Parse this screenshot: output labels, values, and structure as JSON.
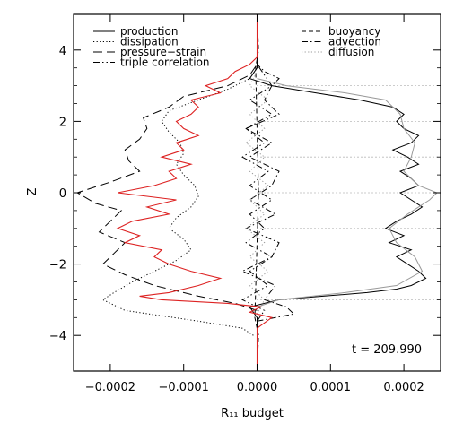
{
  "chart_data": {
    "type": "line",
    "xlabel": "R₁₁ budget",
    "ylabel": "Z",
    "xlim": [
      -0.00025,
      0.00025
    ],
    "ylim": [
      -5,
      5
    ],
    "x_ticks": [
      -0.0002,
      -0.0001,
      0.0,
      0.0001,
      0.0002
    ],
    "x_tick_labels": [
      "−0.0002",
      "−0.0001",
      "0.0000",
      "0.0001",
      "0.0002"
    ],
    "y_ticks": [
      -4,
      -2,
      0,
      2,
      4
    ],
    "y_tick_labels": [
      "−4",
      "−2",
      "0",
      "2",
      "4"
    ],
    "dotted_reference_z": [
      -3,
      -2,
      -1,
      0,
      1,
      2,
      3
    ],
    "grid": false,
    "legend_placement": "top",
    "annotation": "t = 209.990",
    "series": [
      {
        "name": "production",
        "color": "#000000",
        "dash": "solid",
        "z": [
          -5,
          -3.5,
          -3.2,
          -3.0,
          -2.9,
          -2.8,
          -2.7,
          -2.6,
          -2.4,
          -2.2,
          -2.0,
          -1.8,
          -1.6,
          -1.4,
          -1.2,
          -1.0,
          -0.8,
          -0.6,
          -0.4,
          -0.2,
          0.0,
          0.2,
          0.4,
          0.6,
          0.8,
          1.0,
          1.2,
          1.4,
          1.6,
          1.8,
          2.0,
          2.2,
          2.4,
          2.6,
          2.8,
          3.0,
          3.2,
          3.5,
          5
        ],
        "values": [
          0,
          0,
          -1e-05,
          3e-05,
          9e-05,
          0.00015,
          0.00019,
          0.00021,
          0.00023,
          0.00022,
          0.000205,
          0.00019,
          0.00021,
          0.00018,
          0.0002,
          0.000175,
          0.00019,
          0.00021,
          0.000225,
          0.00021,
          0.000195,
          0.00022,
          0.00021,
          0.000195,
          0.00022,
          0.000205,
          0.000185,
          0.00021,
          0.00022,
          0.0002,
          0.00019,
          0.0002,
          0.000185,
          0.00014,
          8e-05,
          2e-05,
          -1e-05,
          0,
          0
        ]
      },
      {
        "name": "dissipation",
        "color": "#000000",
        "dash": "dotted",
        "z": [
          -4.0,
          -3.8,
          -3.6,
          -3.3,
          -3.0,
          -2.8,
          -2.5,
          -2.2,
          -1.9,
          -1.6,
          -1.3,
          -1.0,
          -0.7,
          -0.4,
          -0.1,
          0.2,
          0.5,
          0.8,
          1.1,
          1.4,
          1.7,
          2.0,
          2.3,
          2.6,
          2.9,
          3.2,
          3.5
        ],
        "values": [
          -5e-06,
          -2e-05,
          -8e-05,
          -0.00018,
          -0.00021,
          -0.000195,
          -0.00017,
          -0.00014,
          -0.00011,
          -9e-05,
          -0.0001,
          -0.00012,
          -0.00011,
          -9e-05,
          -8e-05,
          -8.5e-05,
          -0.0001,
          -0.00011,
          -0.0001,
          -0.000105,
          -0.00012,
          -0.00013,
          -0.00012,
          -8e-05,
          -4e-05,
          -1e-05,
          0.0
        ]
      },
      {
        "name": "pressure−strain",
        "color": "#000000",
        "dash": "longdash",
        "z": [
          -3.3,
          -3.1,
          -2.9,
          -2.6,
          -2.3,
          -2.0,
          -1.7,
          -1.4,
          -1.1,
          -0.8,
          -0.5,
          -0.3,
          0.0,
          0.3,
          0.6,
          0.9,
          1.2,
          1.5,
          1.8,
          2.1,
          2.4,
          2.7,
          3.0,
          3.3,
          3.6
        ],
        "values": [
          0.0,
          -3e-05,
          -8e-05,
          -0.00014,
          -0.00018,
          -0.00021,
          -0.000195,
          -0.00018,
          -0.000215,
          -0.0002,
          -0.000185,
          -0.00022,
          -0.000245,
          -0.0002,
          -0.00016,
          -0.000175,
          -0.00018,
          -0.00016,
          -0.00015,
          -0.000155,
          -0.00012,
          -0.0001,
          -4e-05,
          -1e-05,
          0.0
        ]
      },
      {
        "name": "triple correlation",
        "color": "#000000",
        "dash": "dashdotdot",
        "z": [
          -3.6,
          -3.3,
          -3.0,
          -2.6,
          -2.2,
          -1.8,
          -1.4,
          -1.0,
          -0.6,
          -0.2,
          0.2,
          0.6,
          1.0,
          1.4,
          1.8,
          2.2,
          2.6,
          3.0,
          3.3,
          3.6
        ],
        "values": [
          0.0,
          1e-05,
          -2e-05,
          1.5e-05,
          -1e-05,
          2e-05,
          -1.5e-05,
          1e-05,
          -1e-05,
          2e-05,
          -1e-05,
          1.5e-05,
          -2e-05,
          1e-05,
          -1.5e-05,
          2e-05,
          -1e-05,
          2e-05,
          1e-05,
          0.0
        ]
      },
      {
        "name": "buoyancy",
        "color": "#000000",
        "dash": "shortdash",
        "z": [
          -5,
          -4.0,
          -3.5,
          0.0,
          3.5,
          4.0,
          5
        ],
        "values": [
          0.0,
          2e-06,
          -3e-06,
          2e-06,
          -2e-06,
          2e-06,
          0.0
        ]
      },
      {
        "name": "advection",
        "color": "#000000",
        "dash": "dashdot",
        "z": [
          -3.6,
          -3.4,
          -3.2,
          -3.0,
          -2.6,
          -2.2,
          -1.8,
          -1.4,
          -1.0,
          -0.6,
          -0.2,
          0.2,
          0.6,
          1.0,
          1.4,
          1.8,
          2.2,
          2.6,
          3.0,
          3.2,
          3.4,
          3.6
        ],
        "values": [
          0.0,
          5e-05,
          4e-05,
          1e-05,
          2.5e-05,
          -2e-05,
          2e-05,
          3e-05,
          -1.5e-05,
          2.5e-05,
          -1e-05,
          2e-05,
          3e-05,
          -1e-05,
          2e-05,
          -1.5e-05,
          3e-05,
          1e-05,
          2e-05,
          3e-05,
          1e-05,
          0.0
        ]
      },
      {
        "name": "diffusion",
        "color": "#9a9a9a",
        "dash": "dotted",
        "z": [
          -3.4,
          -3.0,
          -2.6,
          -2.2,
          -1.8,
          -1.4,
          -1.0,
          -0.6,
          -0.2,
          0.2,
          0.6,
          1.0,
          1.4,
          1.8,
          2.2,
          2.6,
          3.0,
          3.4
        ],
        "values": [
          0.0,
          1e-05,
          -1e-05,
          1.5e-05,
          -1e-05,
          1e-05,
          -1.5e-05,
          1e-05,
          -1e-05,
          1.5e-05,
          -1e-05,
          1e-05,
          -1.5e-05,
          1e-05,
          -1e-05,
          1.5e-05,
          -1e-05,
          0.0
        ]
      },
      {
        "color": "#9a9a9a",
        "dash": "solid",
        "z": [
          -3.2,
          -3.0,
          -2.8,
          -2.6,
          -2.2,
          -1.8,
          -1.4,
          -1.0,
          -0.6,
          -0.2,
          0.0,
          0.2,
          0.6,
          1.0,
          1.4,
          1.8,
          2.2,
          2.6,
          2.8,
          3.0,
          3.2
        ],
        "values": [
          0.0,
          3e-05,
          0.00012,
          0.00019,
          0.000225,
          0.000215,
          0.00019,
          0.00018,
          0.000205,
          0.000235,
          0.000245,
          0.00022,
          0.0002,
          0.00021,
          0.000215,
          0.0002,
          0.000195,
          0.000175,
          0.00012,
          4e-05,
          0.0
        ]
      },
      {
        "color": "#dd2222",
        "dash": "solid",
        "z": [
          -5,
          -3.8,
          -3.5,
          -3.35,
          -3.2,
          -3.1,
          -3.0,
          -2.9,
          -2.8,
          -2.6,
          -2.4,
          -2.2,
          -2.0,
          -1.8,
          -1.6,
          -1.4,
          -1.2,
          -1.0,
          -0.8,
          -0.6,
          -0.4,
          -0.2,
          0.0,
          0.2,
          0.4,
          0.6,
          0.8,
          1.0,
          1.2,
          1.4,
          1.6,
          1.8,
          2.0,
          2.2,
          2.4,
          2.6,
          2.8,
          3.0,
          3.2,
          3.4,
          3.6,
          3.8,
          5
        ],
        "values": [
          0.0,
          0.0,
          2e-05,
          -1e-05,
          5e-06,
          -4e-05,
          -0.00013,
          -0.00016,
          -0.00012,
          -8e-05,
          -5e-05,
          -9e-05,
          -0.00012,
          -0.00014,
          -0.00013,
          -0.00018,
          -0.00016,
          -0.00019,
          -0.00017,
          -0.00012,
          -0.00015,
          -0.00011,
          -0.00019,
          -0.00014,
          -0.00011,
          -0.00012,
          -9e-05,
          -0.00013,
          -0.0001,
          -0.00011,
          -8e-05,
          -0.0001,
          -0.00011,
          -9e-05,
          -8e-05,
          -9e-05,
          -5e-05,
          -7e-05,
          -4e-05,
          -3e-05,
          -1e-05,
          0.0,
          0.0
        ]
      }
    ]
  }
}
